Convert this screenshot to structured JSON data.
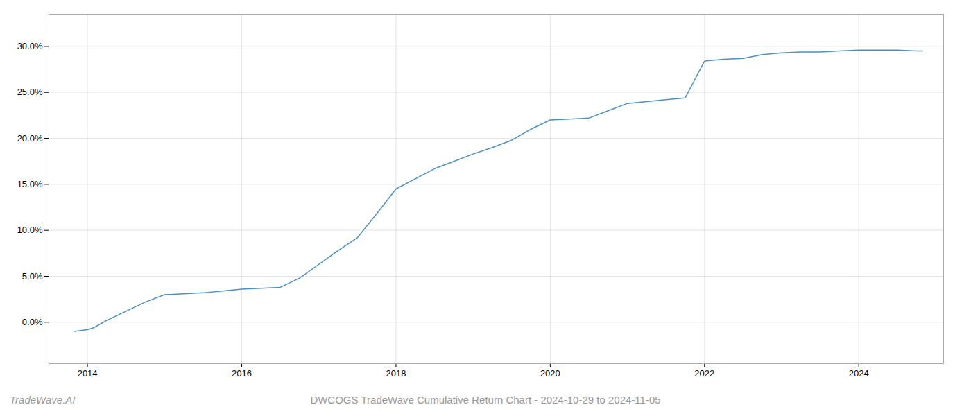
{
  "chart_data": {
    "type": "line",
    "title": "DWCOGS TradeWave Cumulative Return Chart - 2024-10-29 to 2024-11-05",
    "annotations": [
      "TradeWave.AI"
    ],
    "color": "#4a90c4",
    "grid": true,
    "x": [
      2013.83,
      2014.0,
      2014.08,
      2014.25,
      2014.5,
      2014.75,
      2015.0,
      2015.25,
      2015.5,
      2015.75,
      2016.0,
      2016.25,
      2016.5,
      2016.75,
      2017.0,
      2017.25,
      2017.5,
      2017.75,
      2018.0,
      2018.25,
      2018.5,
      2018.75,
      2019.0,
      2019.25,
      2019.5,
      2019.75,
      2020.0,
      2020.25,
      2020.5,
      2020.75,
      2021.0,
      2021.25,
      2021.5,
      2021.75,
      2022.0,
      2022.25,
      2022.5,
      2022.75,
      2023.0,
      2023.25,
      2023.5,
      2023.75,
      2024.0,
      2024.25,
      2024.5,
      2024.75,
      2024.83
    ],
    "values": [
      -0.01,
      -0.008,
      -0.006,
      0.002,
      0.012,
      0.022,
      0.03,
      0.031,
      0.032,
      0.034,
      0.036,
      0.037,
      0.038,
      0.048,
      0.063,
      0.078,
      0.092,
      0.118,
      0.145,
      0.156,
      0.167,
      0.175,
      0.183,
      0.19,
      0.198,
      0.21,
      0.22,
      0.221,
      0.222,
      0.23,
      0.238,
      0.24,
      0.242,
      0.244,
      0.284,
      0.286,
      0.287,
      0.291,
      0.293,
      0.294,
      0.294,
      0.295,
      0.296,
      0.296,
      0.296,
      0.295,
      0.295
    ],
    "xlim": [
      2013.5,
      2025.1
    ],
    "ylim": [
      -0.045,
      0.335
    ],
    "xticks": [
      2014,
      2016,
      2018,
      2020,
      2022,
      2024
    ],
    "yticks": [
      {
        "value": 0.0,
        "label": "0.0%"
      },
      {
        "value": 0.05,
        "label": "5.0%"
      },
      {
        "value": 0.1,
        "label": "10.0%"
      },
      {
        "value": 0.15,
        "label": "15.0%"
      },
      {
        "value": 0.2,
        "label": "20.0%"
      },
      {
        "value": 0.25,
        "label": "25.0%"
      },
      {
        "value": 0.3,
        "label": "30.0%"
      }
    ]
  }
}
